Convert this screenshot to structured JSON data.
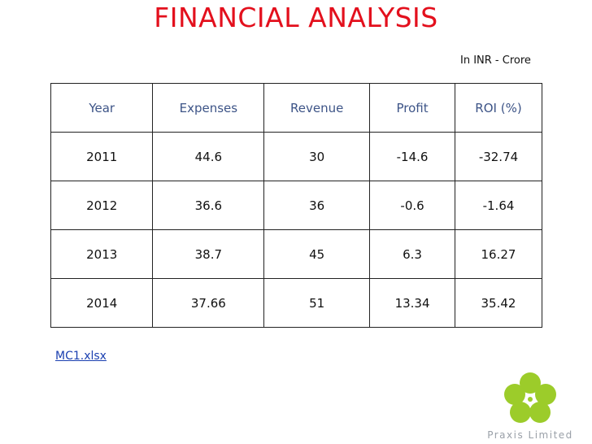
{
  "title": "FINANCIAL ANALYSIS",
  "note": "In INR - Crore",
  "table": {
    "header": [
      "Year",
      "Expenses",
      "Revenue",
      "Profit",
      "ROI (%)"
    ],
    "rows": [
      [
        2011,
        44.6,
        30,
        -14.6,
        -32.74
      ],
      [
        2012,
        36.6,
        36,
        -0.6,
        -1.64
      ],
      [
        2013,
        38.7,
        45,
        6.3,
        16.27
      ],
      [
        2014,
        37.66,
        51,
        13.34,
        35.42
      ]
    ]
  },
  "link": "MC1.xlsx",
  "logo": "Praxis Limited"
}
